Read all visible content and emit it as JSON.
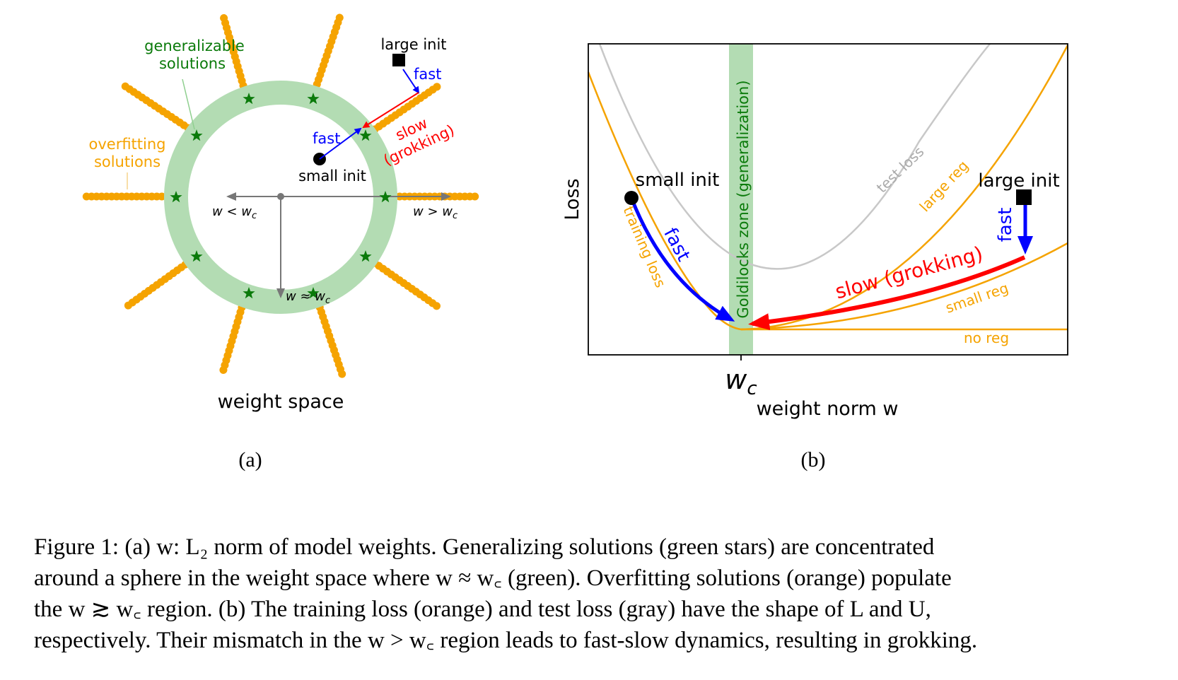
{
  "panel_a": {
    "label": "(a)",
    "axis_caption": "weight space",
    "generalizable_label_line1": "generalizable",
    "generalizable_label_line2": "solutions",
    "overfitting_label_line1": "overfitting",
    "overfitting_label_line2": "solutions",
    "large_init": "large init",
    "small_init": "small init",
    "fast_top": "fast",
    "fast_mid": "fast",
    "slow_line1": "slow",
    "slow_line2": "(grokking)",
    "w_less": "w < w",
    "w_greater": "w > w",
    "w_approx": "w ≈ w",
    "subscript_c": "c"
  },
  "panel_b": {
    "label": "(b)",
    "ylabel": "Loss",
    "xlabel": "weight norm w",
    "xtick": "w",
    "xtick_sub": "c",
    "zone_label": "Goldilocks zone (generalization)",
    "test_loss": "test loss",
    "large_reg": "large reg",
    "small_reg": "small reg",
    "no_reg": "no reg",
    "training_loss": "training loss",
    "small_init": "small init",
    "large_init": "large init",
    "fast_left": "fast",
    "fast_right": "fast",
    "slow": "slow (grokking)"
  },
  "caption": {
    "line1": "Figure 1: (a) w: L₂ norm of model weights. Generalizing solutions (green stars) are concentrated",
    "line2": "around a sphere in the weight space where w ≈ w꜀ (green). Overfitting solutions (orange) populate",
    "line3": "the w ≳ w꜀ region. (b) The training loss (orange) and test loss (gray) have the shape of L and U,",
    "line4": "respectively. Their mismatch in the w > w꜀ region leads to fast-slow dynamics, resulting in grokking."
  },
  "colors": {
    "orange": "#f5a300",
    "green_band": "#b3dcb3",
    "green_star": "#0a7a0a",
    "blue": "#0000ff",
    "red": "#ff0000",
    "gray": "#bfbfbf",
    "black": "#000000"
  }
}
